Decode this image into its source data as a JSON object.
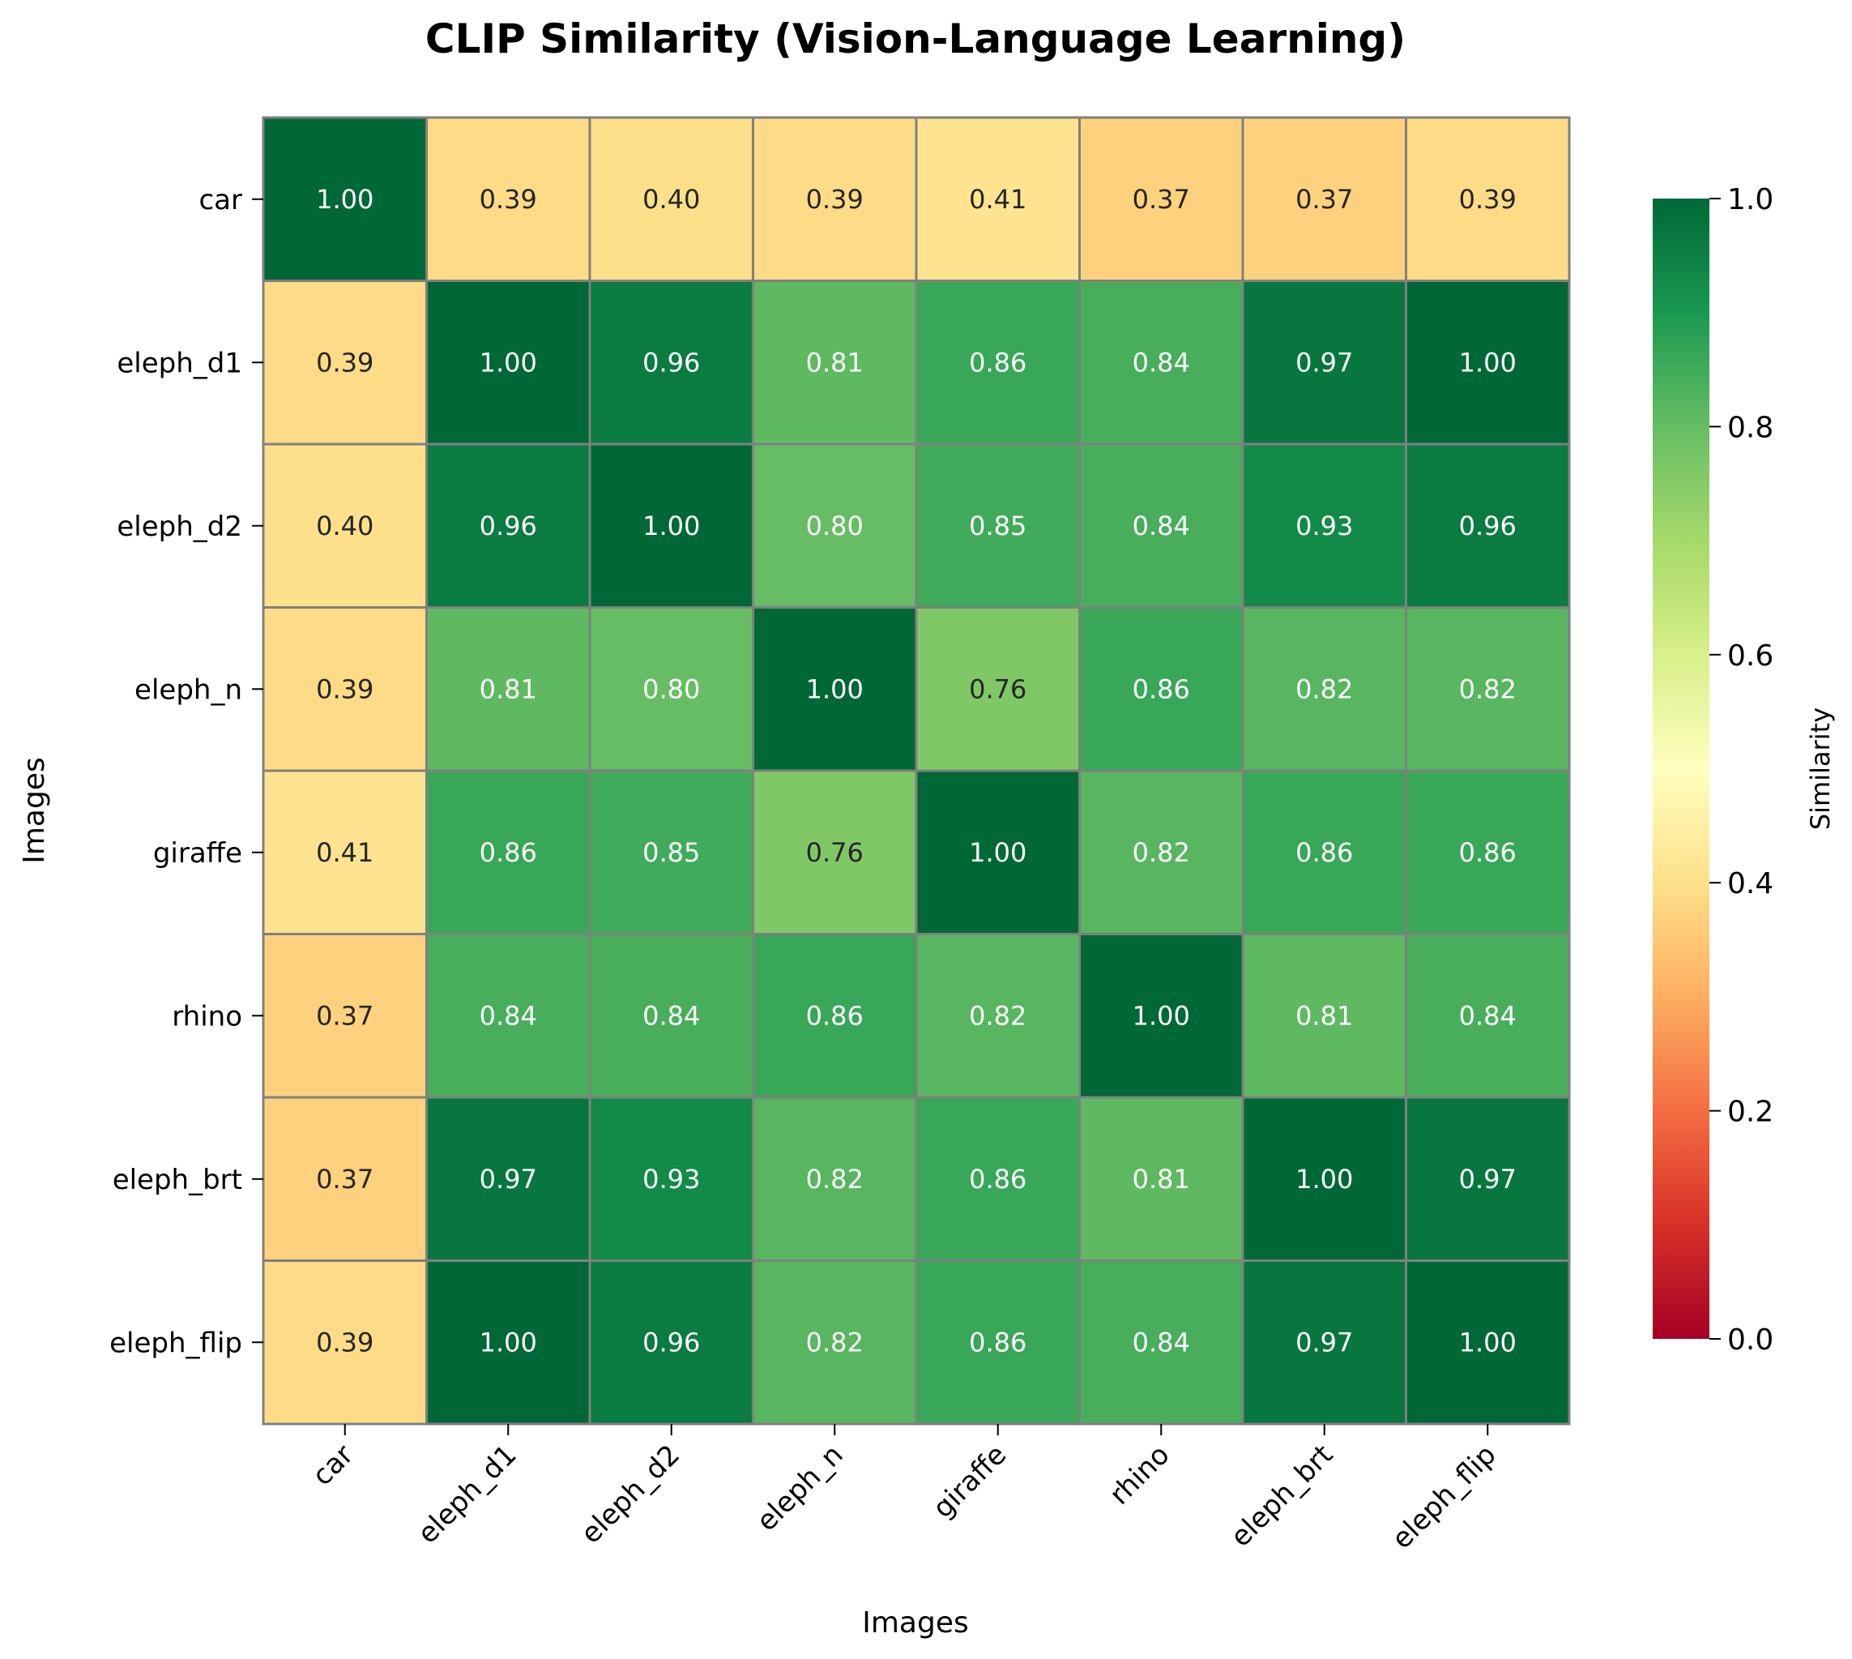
{
  "chart_data": {
    "type": "heatmap",
    "title": "CLIP Similarity (Vision-Language Learning)",
    "xlabel": "Images",
    "ylabel": "Images",
    "x_categories": [
      "car",
      "eleph_d1",
      "eleph_d2",
      "eleph_n",
      "giraffe",
      "rhino",
      "eleph_brt",
      "eleph_flip"
    ],
    "y_categories": [
      "car",
      "eleph_d1",
      "eleph_d2",
      "eleph_n",
      "giraffe",
      "rhino",
      "eleph_brt",
      "eleph_flip"
    ],
    "values": [
      [
        1.0,
        0.39,
        0.4,
        0.39,
        0.41,
        0.37,
        0.37,
        0.39
      ],
      [
        0.39,
        1.0,
        0.96,
        0.81,
        0.86,
        0.84,
        0.97,
        1.0
      ],
      [
        0.4,
        0.96,
        1.0,
        0.8,
        0.85,
        0.84,
        0.93,
        0.96
      ],
      [
        0.39,
        0.81,
        0.8,
        1.0,
        0.76,
        0.86,
        0.82,
        0.82
      ],
      [
        0.41,
        0.86,
        0.85,
        0.76,
        1.0,
        0.82,
        0.86,
        0.86
      ],
      [
        0.37,
        0.84,
        0.84,
        0.86,
        0.82,
        1.0,
        0.81,
        0.84
      ],
      [
        0.37,
        0.97,
        0.93,
        0.82,
        0.86,
        0.81,
        1.0,
        0.97
      ],
      [
        0.39,
        1.0,
        0.96,
        0.82,
        0.86,
        0.84,
        0.97,
        1.0
      ]
    ],
    "value_format": "2 decimals",
    "colorbar": {
      "label": "Similarity",
      "range": [
        0.0,
        1.0
      ],
      "ticks": [
        "0.0",
        "0.2",
        "0.4",
        "0.6",
        "0.8",
        "1.0"
      ],
      "colormap": "RdYlGn"
    },
    "cell_border_color": "#808080",
    "grid": false
  }
}
